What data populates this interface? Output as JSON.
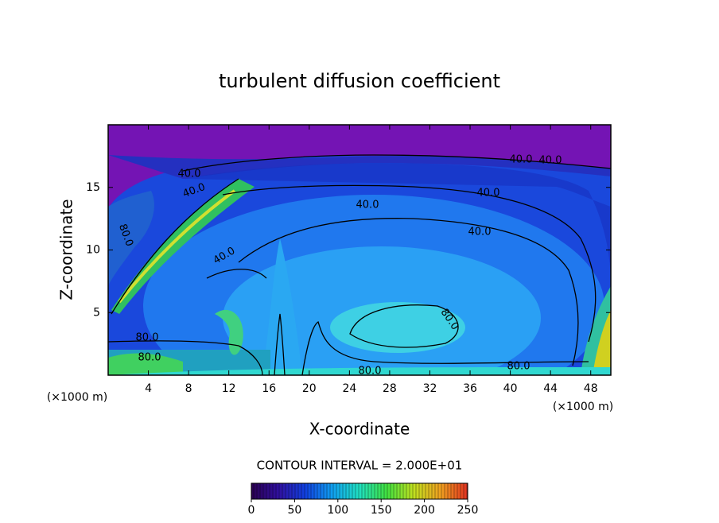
{
  "chart_data": {
    "type": "contour",
    "title": "turbulent diffusion coefficient",
    "x_label": "X-coordinate",
    "y_label": "Z-coordinate",
    "x_unit_labels": [
      "(×1000 m)",
      "(×1000 m)"
    ],
    "xlim": [
      0,
      50
    ],
    "ylim": [
      0,
      20
    ],
    "xticks": [
      4,
      8,
      12,
      16,
      20,
      24,
      28,
      32,
      36,
      40,
      44,
      48
    ],
    "yticks": [
      5,
      10,
      15
    ],
    "contour_labels": [
      "40.0",
      "40.0",
      "40.0",
      "40.0",
      "40.0",
      "40.0",
      "40.0",
      "40.0",
      "80.0",
      "80.0",
      "80.0",
      "80.0",
      "80.0",
      "80.0"
    ],
    "contour_interval": "CONTOUR INTERVAL = 2.000E+01",
    "colorbar": {
      "clim": [
        0,
        250
      ],
      "ticks": [
        0,
        50,
        100,
        150,
        200,
        250
      ],
      "colormap": [
        "#2a0050",
        "#3010a0",
        "#1040e0",
        "#10a0f0",
        "#20e0c0",
        "#40e040",
        "#c0e020",
        "#f0a020",
        "#e03020"
      ]
    }
  }
}
